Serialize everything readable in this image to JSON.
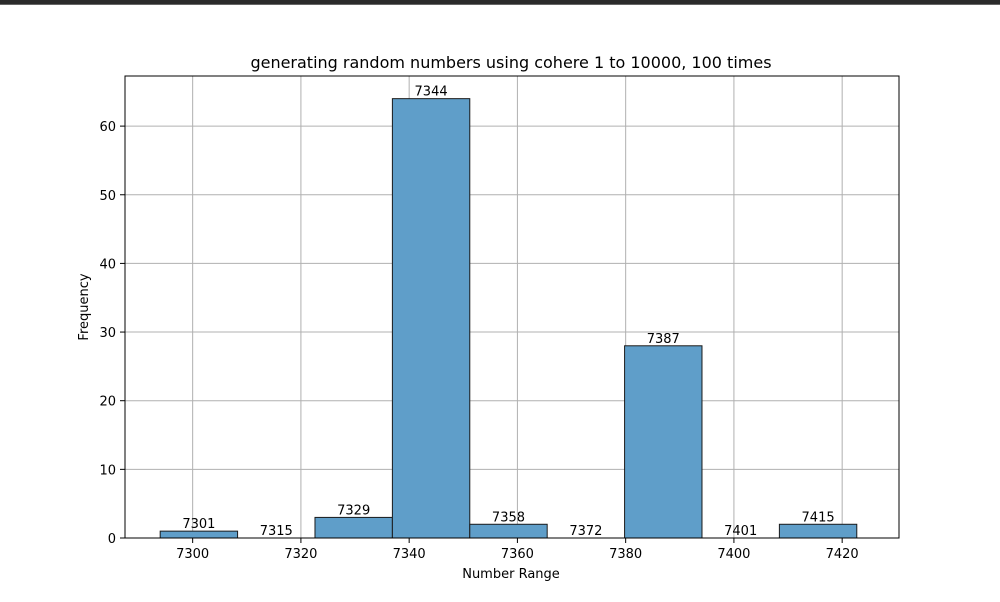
{
  "chart_data": {
    "type": "bar",
    "title": "generating random numbers using cohere 1 to 10000, 100 times",
    "xlabel": "Number Range",
    "ylabel": "Frequency",
    "xlim": [
      7287.5,
      7430.5
    ],
    "ylim": [
      0,
      67.3
    ],
    "x_ticks": [
      7300,
      7320,
      7340,
      7360,
      7380,
      7400,
      7420
    ],
    "y_ticks": [
      0,
      10,
      20,
      30,
      40,
      50,
      60
    ],
    "grid": true,
    "bar_color": "#5f9ec9",
    "edge_color": "#1a1a1a",
    "bins": [
      {
        "start": 7294.0,
        "end": 7308.3,
        "count": 1,
        "label": "7301"
      },
      {
        "start": 7308.3,
        "end": 7322.6,
        "count": 0,
        "label": "7315"
      },
      {
        "start": 7322.6,
        "end": 7336.9,
        "count": 3,
        "label": "7329"
      },
      {
        "start": 7336.9,
        "end": 7351.2,
        "count": 64,
        "label": "7344"
      },
      {
        "start": 7351.2,
        "end": 7365.5,
        "count": 2,
        "label": "7358"
      },
      {
        "start": 7365.5,
        "end": 7379.8,
        "count": 0,
        "label": "7372"
      },
      {
        "start": 7379.8,
        "end": 7394.1,
        "count": 28,
        "label": "7387"
      },
      {
        "start": 7394.1,
        "end": 7408.4,
        "count": 0,
        "label": "7401"
      },
      {
        "start": 7408.4,
        "end": 7422.7,
        "count": 2,
        "label": "7415"
      }
    ]
  }
}
